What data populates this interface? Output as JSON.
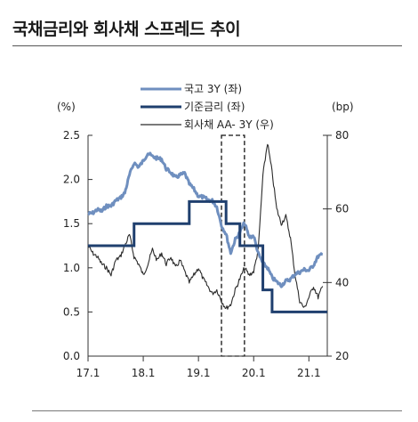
{
  "title": "국채금리와 회사채 스프레드 추이",
  "chart_data": {
    "type": "line",
    "left_unit": "(%)",
    "right_unit": "(bp)",
    "x_ticks": [
      "17.1",
      "18.1",
      "19.1",
      "20.1",
      "21.1"
    ],
    "xlim": [
      "2017-01",
      "2021-05"
    ],
    "ylim_left": [
      0.0,
      2.5
    ],
    "ylim_right": [
      20,
      80
    ],
    "left_ticks": [
      "0.0",
      "0.5",
      "1.0",
      "1.5",
      "2.0",
      "2.5"
    ],
    "right_ticks": [
      "20",
      "40",
      "60",
      "80"
    ],
    "legend_position": "top-center",
    "shaded_period": [
      "2019-06",
      "2019-11"
    ],
    "series": [
      {
        "name": "국고 3Y (좌)",
        "axis": "left",
        "color": "#6f8fbf",
        "points": [
          [
            "2017-01",
            1.61
          ],
          [
            "2017-02",
            1.62
          ],
          [
            "2017-03",
            1.66
          ],
          [
            "2017-04",
            1.64
          ],
          [
            "2017-05",
            1.7
          ],
          [
            "2017-06",
            1.7
          ],
          [
            "2017-07",
            1.76
          ],
          [
            "2017-08",
            1.79
          ],
          [
            "2017-09",
            1.85
          ],
          [
            "2017-10",
            2.05
          ],
          [
            "2017-11",
            2.19
          ],
          [
            "2017-12",
            2.14
          ],
          [
            "2018-01",
            2.21
          ],
          [
            "2018-02",
            2.3
          ],
          [
            "2018-03",
            2.26
          ],
          [
            "2018-04",
            2.24
          ],
          [
            "2018-05",
            2.23
          ],
          [
            "2018-06",
            2.12
          ],
          [
            "2018-07",
            2.08
          ],
          [
            "2018-08",
            2.02
          ],
          [
            "2018-09",
            2.05
          ],
          [
            "2018-10",
            2.07
          ],
          [
            "2018-11",
            1.95
          ],
          [
            "2018-12",
            1.89
          ],
          [
            "2019-01",
            1.81
          ],
          [
            "2019-02",
            1.8
          ],
          [
            "2019-03",
            1.77
          ],
          [
            "2019-04",
            1.76
          ],
          [
            "2019-05",
            1.69
          ],
          [
            "2019-06",
            1.48
          ],
          [
            "2019-07",
            1.38
          ],
          [
            "2019-08",
            1.17
          ],
          [
            "2019-09",
            1.32
          ],
          [
            "2019-10",
            1.4
          ],
          [
            "2019-11",
            1.51
          ],
          [
            "2019-12",
            1.35
          ],
          [
            "2020-01",
            1.36
          ],
          [
            "2020-02",
            1.16
          ],
          [
            "2020-03",
            1.05
          ],
          [
            "2020-04",
            1.0
          ],
          [
            "2020-05",
            0.89
          ],
          [
            "2020-06",
            0.84
          ],
          [
            "2020-07",
            0.8
          ],
          [
            "2020-08",
            0.85
          ],
          [
            "2020-09",
            0.87
          ],
          [
            "2020-10",
            0.93
          ],
          [
            "2020-11",
            0.95
          ],
          [
            "2020-12",
            0.98
          ],
          [
            "2021-01",
            0.97
          ],
          [
            "2021-02",
            1.03
          ],
          [
            "2021-03",
            1.13
          ],
          [
            "2021-04",
            1.15
          ]
        ]
      },
      {
        "name": "기준금리 (좌)",
        "axis": "left",
        "color": "#1f3f6e",
        "steps": [
          [
            "2017-01",
            1.25
          ],
          [
            "2017-11",
            1.5
          ],
          [
            "2018-11",
            1.75
          ],
          [
            "2019-07",
            1.5
          ],
          [
            "2019-10",
            1.25
          ],
          [
            "2020-03",
            0.75
          ],
          [
            "2020-05",
            0.5
          ]
        ],
        "end": "2021-05"
      },
      {
        "name": "회사채 AA- 3Y (우)",
        "axis": "right",
        "color": "#2b2b2b",
        "points": [
          [
            "2017-01",
            50
          ],
          [
            "2017-02",
            48
          ],
          [
            "2017-03",
            47
          ],
          [
            "2017-04",
            45
          ],
          [
            "2017-05",
            44
          ],
          [
            "2017-06",
            42
          ],
          [
            "2017-07",
            46
          ],
          [
            "2017-08",
            47
          ],
          [
            "2017-09",
            50
          ],
          [
            "2017-10",
            53
          ],
          [
            "2017-11",
            47
          ],
          [
            "2017-12",
            45
          ],
          [
            "2018-01",
            42
          ],
          [
            "2018-02",
            45
          ],
          [
            "2018-03",
            49
          ],
          [
            "2018-04",
            46
          ],
          [
            "2018-05",
            48
          ],
          [
            "2018-06",
            45
          ],
          [
            "2018-07",
            47
          ],
          [
            "2018-08",
            44
          ],
          [
            "2018-09",
            46
          ],
          [
            "2018-10",
            43
          ],
          [
            "2018-11",
            40
          ],
          [
            "2018-12",
            42
          ],
          [
            "2019-01",
            44
          ],
          [
            "2019-02",
            41
          ],
          [
            "2019-03",
            39
          ],
          [
            "2019-04",
            37
          ],
          [
            "2019-05",
            38
          ],
          [
            "2019-06",
            35
          ],
          [
            "2019-07",
            33
          ],
          [
            "2019-08",
            34
          ],
          [
            "2019-09",
            38
          ],
          [
            "2019-10",
            41
          ],
          [
            "2019-11",
            44
          ],
          [
            "2019-12",
            42
          ],
          [
            "2020-01",
            43
          ],
          [
            "2020-02",
            49
          ],
          [
            "2020-03",
            69
          ],
          [
            "2020-04",
            78
          ],
          [
            "2020-05",
            70
          ],
          [
            "2020-06",
            60
          ],
          [
            "2020-07",
            56
          ],
          [
            "2020-08",
            58
          ],
          [
            "2020-09",
            52
          ],
          [
            "2020-10",
            42
          ],
          [
            "2020-11",
            35
          ],
          [
            "2020-12",
            33
          ],
          [
            "2021-01",
            36
          ],
          [
            "2021-02",
            39
          ],
          [
            "2021-03",
            36
          ],
          [
            "2021-04",
            39
          ]
        ]
      }
    ]
  }
}
